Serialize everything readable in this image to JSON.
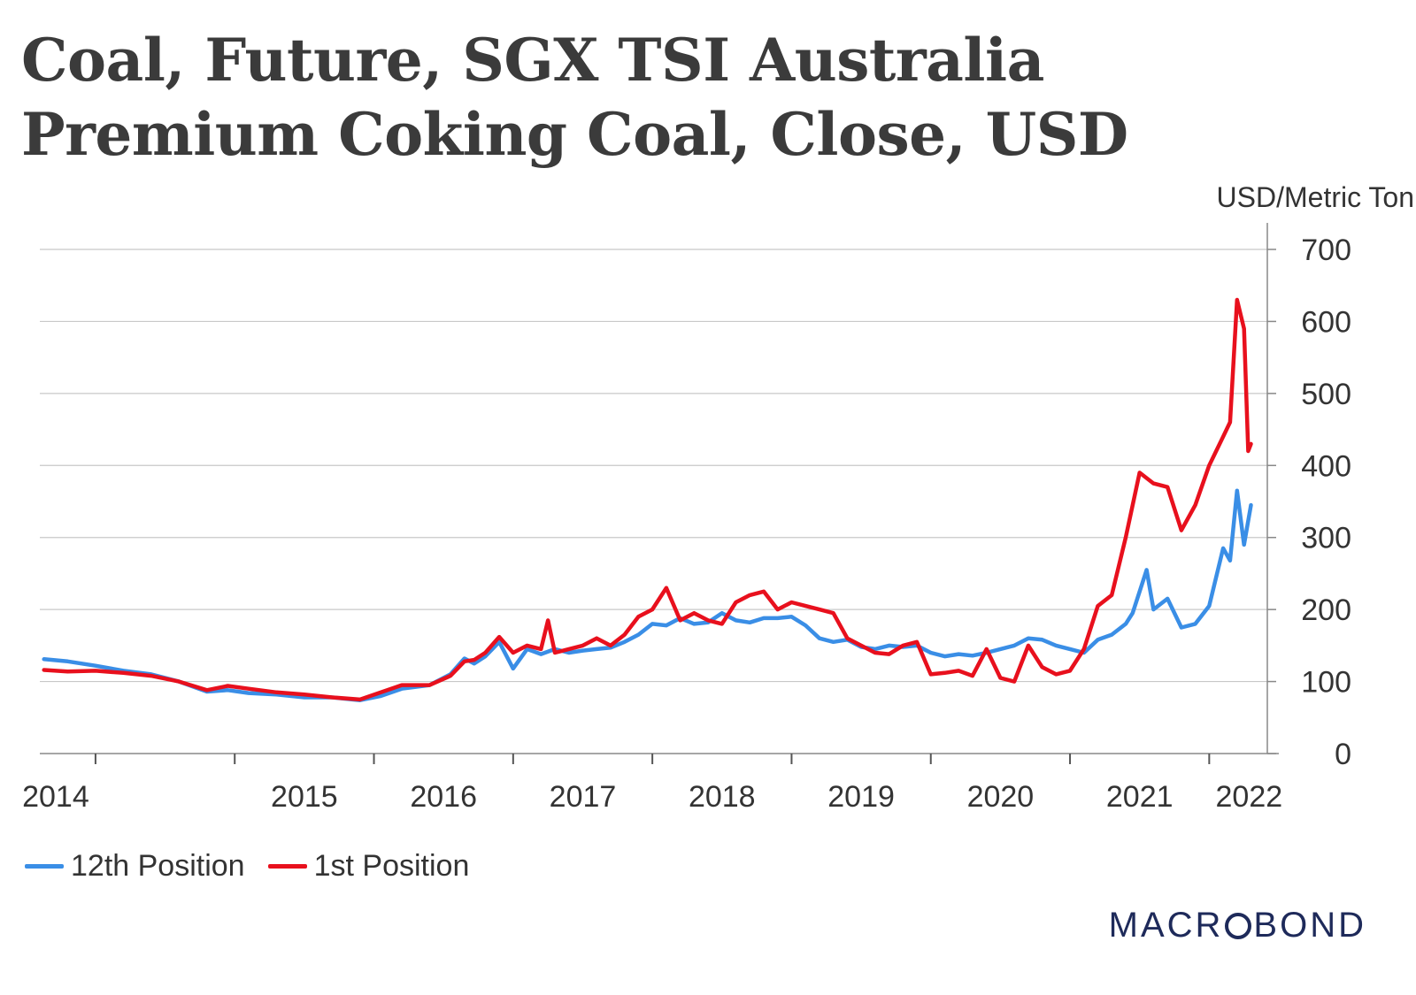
{
  "title": {
    "line1": "Coal, Future, SGX TSI Australia",
    "line2": "Premium Coking Coal, Close, USD"
  },
  "unit_label": "USD/Metric Ton",
  "brand": {
    "prefix": "MACR",
    "suffix": "BOND",
    "full": "MACROBOND"
  },
  "colors": {
    "series_12th": "#3a8ee6",
    "series_1st": "#e8101d",
    "grid": "#c8c8c8",
    "axis": "#888888"
  },
  "chart_data": {
    "type": "line",
    "title": "Coal, Future, SGX TSI Australia Premium Coking Coal, Close, USD",
    "ylabel": "USD/Metric Ton",
    "xlabel": "",
    "ylim": [
      0,
      700
    ],
    "xlim": [
      2013.6,
      2022.5
    ],
    "y_ticks": [
      "0",
      "100",
      "200",
      "300",
      "400",
      "500",
      "600",
      "700"
    ],
    "x_ticks": [
      "2014",
      "2015",
      "2016",
      "2017",
      "2018",
      "2019",
      "2020",
      "2021",
      "2022"
    ],
    "grid": true,
    "legend_position": "bottom-left",
    "series": [
      {
        "name": "12th Position",
        "color": "#3a8ee6",
        "x": [
          2013.63,
          2013.8,
          2014.0,
          2014.2,
          2014.4,
          2014.6,
          2014.8,
          2014.95,
          2015.1,
          2015.3,
          2015.5,
          2015.7,
          2015.9,
          2016.05,
          2016.2,
          2016.4,
          2016.55,
          2016.65,
          2016.72,
          2016.8,
          2016.9,
          2017.0,
          2017.1,
          2017.2,
          2017.3,
          2017.4,
          2017.5,
          2017.6,
          2017.7,
          2017.8,
          2017.9,
          2018.0,
          2018.1,
          2018.2,
          2018.3,
          2018.4,
          2018.5,
          2018.6,
          2018.7,
          2018.8,
          2018.9,
          2019.0,
          2019.1,
          2019.2,
          2019.3,
          2019.4,
          2019.5,
          2019.6,
          2019.7,
          2019.8,
          2019.9,
          2020.0,
          2020.1,
          2020.2,
          2020.3,
          2020.4,
          2020.5,
          2020.6,
          2020.7,
          2020.8,
          2020.9,
          2021.0,
          2021.1,
          2021.2,
          2021.3,
          2021.4,
          2021.45,
          2021.55,
          2021.6,
          2021.7,
          2021.8,
          2021.9,
          2022.0,
          2022.1,
          2022.15,
          2022.2,
          2022.25,
          2022.3
        ],
        "values": [
          131,
          128,
          122,
          115,
          110,
          100,
          86,
          88,
          84,
          82,
          78,
          78,
          74,
          80,
          90,
          95,
          110,
          132,
          125,
          135,
          155,
          118,
          145,
          138,
          145,
          140,
          143,
          145,
          147,
          155,
          165,
          180,
          178,
          188,
          180,
          182,
          195,
          185,
          182,
          188,
          188,
          190,
          178,
          160,
          155,
          158,
          148,
          145,
          150,
          148,
          150,
          140,
          135,
          138,
          136,
          140,
          145,
          150,
          160,
          158,
          150,
          145,
          140,
          158,
          165,
          180,
          195,
          255,
          200,
          215,
          175,
          180,
          205,
          285,
          268,
          365,
          290,
          345
        ]
      },
      {
        "name": "1st Position",
        "color": "#e8101d",
        "x": [
          2013.63,
          2013.8,
          2014.0,
          2014.2,
          2014.4,
          2014.6,
          2014.8,
          2014.95,
          2015.1,
          2015.3,
          2015.5,
          2015.7,
          2015.9,
          2016.05,
          2016.2,
          2016.4,
          2016.55,
          2016.65,
          2016.72,
          2016.8,
          2016.9,
          2017.0,
          2017.1,
          2017.2,
          2017.25,
          2017.3,
          2017.4,
          2017.5,
          2017.6,
          2017.7,
          2017.8,
          2017.9,
          2018.0,
          2018.1,
          2018.2,
          2018.3,
          2018.4,
          2018.5,
          2018.6,
          2018.7,
          2018.8,
          2018.9,
          2019.0,
          2019.1,
          2019.2,
          2019.3,
          2019.4,
          2019.5,
          2019.6,
          2019.7,
          2019.8,
          2019.9,
          2020.0,
          2020.1,
          2020.2,
          2020.3,
          2020.4,
          2020.5,
          2020.6,
          2020.7,
          2020.8,
          2020.9,
          2021.0,
          2021.1,
          2021.2,
          2021.3,
          2021.4,
          2021.5,
          2021.6,
          2021.7,
          2021.8,
          2021.9,
          2022.0,
          2022.1,
          2022.15,
          2022.2,
          2022.25,
          2022.28,
          2022.3
        ],
        "values": [
          116,
          114,
          115,
          112,
          108,
          100,
          88,
          94,
          90,
          85,
          82,
          78,
          75,
          85,
          95,
          95,
          108,
          128,
          130,
          140,
          162,
          140,
          150,
          145,
          185,
          140,
          145,
          150,
          160,
          150,
          165,
          190,
          200,
          230,
          185,
          195,
          185,
          180,
          210,
          220,
          225,
          200,
          210,
          205,
          200,
          195,
          160,
          150,
          140,
          138,
          150,
          155,
          110,
          112,
          115,
          108,
          145,
          105,
          100,
          150,
          120,
          110,
          115,
          145,
          205,
          220,
          300,
          390,
          375,
          370,
          310,
          345,
          400,
          440,
          460,
          630,
          590,
          420,
          430
        ]
      }
    ]
  }
}
